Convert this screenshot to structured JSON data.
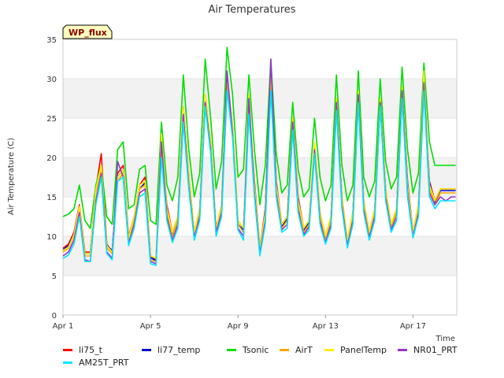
{
  "chart_data": {
    "type": "line",
    "title": "Air Temperatures",
    "xlabel": "Time",
    "ylabel": "Air Temperature (C)",
    "badge": "WP_flux",
    "xlim": [
      0,
      18
    ],
    "ylim": [
      0,
      35
    ],
    "x_ticks": [
      {
        "value": 0,
        "label": "Apr 1"
      },
      {
        "value": 4,
        "label": "Apr 5"
      },
      {
        "value": 8,
        "label": "Apr 9"
      },
      {
        "value": 12,
        "label": "Apr 13"
      },
      {
        "value": 16,
        "label": "Apr 17"
      }
    ],
    "y_ticks": [
      0,
      5,
      10,
      15,
      20,
      25,
      30,
      35
    ],
    "grid_bands": true,
    "legend_placement": "bottom",
    "x": [
      0.0,
      0.25,
      0.5,
      0.75,
      1.0,
      1.25,
      1.5,
      1.75,
      2.0,
      2.25,
      2.5,
      2.75,
      3.0,
      3.25,
      3.5,
      3.75,
      4.0,
      4.25,
      4.5,
      4.75,
      5.0,
      5.25,
      5.5,
      5.75,
      6.0,
      6.25,
      6.5,
      6.75,
      7.0,
      7.25,
      7.5,
      7.75,
      8.0,
      8.25,
      8.5,
      8.75,
      9.0,
      9.25,
      9.5,
      9.75,
      10.0,
      10.25,
      10.5,
      10.75,
      11.0,
      11.25,
      11.5,
      11.75,
      12.0,
      12.25,
      12.5,
      12.75,
      13.0,
      13.25,
      13.5,
      13.75,
      14.0,
      14.25,
      14.5,
      14.75,
      15.0,
      15.25,
      15.5,
      15.75,
      16.0,
      16.25,
      16.5,
      16.75,
      17.0,
      17.25,
      17.5,
      17.75,
      17.95
    ],
    "series": [
      {
        "name": "li75_t",
        "color": "#ff0000",
        "values": [
          8.5,
          9.0,
          10.5,
          14.0,
          8.0,
          8.0,
          16.0,
          20.5,
          9.0,
          8.0,
          18.0,
          19.0,
          10.0,
          12.5,
          16.5,
          17.5,
          7.5,
          7.0,
          21.5,
          14.0,
          10.5,
          12.5,
          26.5,
          18.0,
          10.5,
          13.5,
          28.0,
          22.0,
          11.0,
          14.0,
          30.0,
          24.0,
          12.0,
          11.0,
          27.0,
          17.0,
          8.5,
          13.5,
          31.5,
          17.0,
          11.5,
          12.5,
          25.0,
          15.0,
          11.0,
          12.0,
          21.5,
          13.0,
          10.0,
          12.5,
          27.5,
          15.0,
          9.5,
          13.0,
          28.5,
          14.5,
          10.5,
          13.5,
          27.5,
          16.0,
          11.5,
          13.5,
          29.0,
          17.0,
          10.5,
          14.0,
          29.5,
          17.0,
          14.5,
          16.0,
          16.0,
          16.0,
          16.0
        ]
      },
      {
        "name": "li77_temp",
        "color": "#0000cc",
        "values": [
          8.3,
          8.8,
          10.2,
          13.5,
          7.8,
          7.8,
          15.8,
          18.5,
          8.8,
          8.2,
          17.5,
          18.5,
          9.8,
          12.0,
          16.0,
          16.8,
          7.3,
          6.9,
          21.0,
          13.5,
          10.2,
          12.2,
          25.8,
          17.5,
          10.3,
          13.2,
          27.5,
          21.5,
          10.8,
          13.6,
          29.5,
          23.5,
          11.5,
          10.8,
          26.5,
          16.5,
          8.3,
          13.0,
          31.0,
          16.5,
          11.2,
          12.2,
          24.5,
          14.5,
          10.8,
          11.8,
          21.0,
          12.8,
          9.8,
          12.2,
          27.0,
          14.8,
          9.3,
          12.8,
          28.0,
          14.2,
          10.2,
          13.2,
          27.0,
          15.8,
          11.2,
          13.2,
          28.5,
          16.8,
          10.3,
          13.8,
          29.0,
          16.8,
          14.2,
          15.8,
          15.8,
          15.8,
          15.8
        ]
      },
      {
        "name": "Tsonic",
        "color": "#00dd00",
        "values": [
          12.5,
          12.8,
          13.5,
          16.5,
          12.0,
          11.0,
          16.5,
          19.0,
          12.5,
          11.5,
          21.0,
          22.0,
          13.5,
          14.0,
          18.5,
          19.0,
          12.0,
          11.5,
          24.5,
          16.5,
          14.5,
          17.5,
          30.5,
          21.0,
          15.0,
          18.0,
          32.5,
          25.0,
          16.0,
          19.5,
          34.0,
          28.0,
          17.5,
          18.5,
          30.5,
          21.0,
          14.0,
          19.0,
          32.5,
          20.5,
          15.5,
          16.5,
          27.0,
          18.5,
          15.0,
          16.0,
          25.0,
          17.5,
          14.5,
          16.5,
          30.5,
          19.0,
          14.5,
          16.5,
          31.0,
          17.5,
          15.0,
          17.0,
          30.0,
          19.5,
          16.0,
          17.5,
          31.5,
          21.0,
          15.5,
          18.0,
          32.0,
          22.0,
          19.0,
          19.0,
          19.0,
          19.0,
          19.0
        ]
      },
      {
        "name": "AirT",
        "color": "#ffa500",
        "values": [
          8.0,
          8.5,
          10.0,
          13.5,
          7.5,
          7.5,
          15.5,
          18.5,
          8.5,
          7.8,
          17.0,
          18.0,
          9.5,
          12.0,
          16.0,
          16.5,
          7.0,
          6.8,
          20.5,
          13.0,
          10.0,
          12.0,
          25.5,
          17.0,
          10.0,
          13.0,
          27.0,
          21.0,
          10.5,
          13.5,
          29.5,
          23.0,
          11.5,
          10.5,
          26.0,
          16.0,
          8.0,
          12.5,
          30.5,
          16.0,
          11.0,
          12.0,
          24.0,
          14.0,
          10.5,
          11.5,
          21.0,
          12.5,
          9.5,
          12.0,
          26.5,
          14.5,
          9.0,
          12.5,
          27.5,
          14.0,
          10.0,
          13.0,
          27.0,
          15.5,
          11.0,
          13.0,
          28.0,
          16.0,
          10.0,
          13.5,
          28.5,
          16.0,
          14.0,
          15.5,
          15.5,
          15.5,
          15.5
        ]
      },
      {
        "name": "PanelTemp",
        "color": "#ffee00",
        "values": [
          8.2,
          8.6,
          10.2,
          13.8,
          7.8,
          7.8,
          16.0,
          19.0,
          8.8,
          8.0,
          17.5,
          18.5,
          9.8,
          12.5,
          16.5,
          17.0,
          7.5,
          7.2,
          23.0,
          13.5,
          10.5,
          12.5,
          26.5,
          18.0,
          10.5,
          13.5,
          28.0,
          22.0,
          11.0,
          14.0,
          30.5,
          24.0,
          12.0,
          11.0,
          28.0,
          16.5,
          8.5,
          13.0,
          31.0,
          16.5,
          11.5,
          12.5,
          25.0,
          14.5,
          11.0,
          12.0,
          22.0,
          13.0,
          10.0,
          12.5,
          27.5,
          15.0,
          9.5,
          13.0,
          28.5,
          14.5,
          10.5,
          13.5,
          27.5,
          16.0,
          11.5,
          13.5,
          29.0,
          16.5,
          10.5,
          14.0,
          31.0,
          16.5,
          14.5,
          16.0,
          16.0,
          16.0,
          16.0
        ]
      },
      {
        "name": "NR01_PRT",
        "color": "#9933cc",
        "values": [
          7.5,
          8.0,
          9.5,
          13.0,
          7.0,
          6.8,
          14.5,
          18.0,
          8.0,
          7.2,
          19.5,
          17.5,
          9.0,
          11.5,
          15.5,
          16.0,
          6.8,
          6.5,
          22.0,
          12.5,
          9.5,
          11.5,
          25.5,
          16.5,
          9.8,
          12.5,
          27.0,
          21.0,
          10.5,
          13.0,
          31.0,
          23.0,
          11.0,
          10.0,
          27.5,
          15.5,
          7.8,
          12.0,
          32.5,
          15.5,
          10.8,
          11.5,
          24.5,
          13.5,
          10.2,
          11.2,
          21.0,
          12.0,
          9.2,
          11.5,
          27.0,
          14.0,
          8.8,
          12.0,
          28.0,
          13.5,
          9.8,
          12.5,
          27.0,
          15.0,
          10.8,
          12.5,
          28.5,
          15.5,
          10.0,
          13.0,
          29.5,
          15.5,
          14.0,
          15.0,
          14.5,
          15.0,
          15.0
        ]
      },
      {
        "name": "AM25T_PRT",
        "color": "#00e5ff",
        "values": [
          7.2,
          7.6,
          9.0,
          12.5,
          6.8,
          6.8,
          14.0,
          17.5,
          7.8,
          7.0,
          17.0,
          17.5,
          8.8,
          11.0,
          15.0,
          15.5,
          6.5,
          6.3,
          20.0,
          12.0,
          9.2,
          11.0,
          24.5,
          16.0,
          9.5,
          12.0,
          26.5,
          20.5,
          10.0,
          12.5,
          28.5,
          22.5,
          10.8,
          9.5,
          25.5,
          15.0,
          7.5,
          11.5,
          28.5,
          15.0,
          10.5,
          11.0,
          23.5,
          13.0,
          10.0,
          10.8,
          20.5,
          11.5,
          9.0,
          11.0,
          26.0,
          13.5,
          8.5,
          11.5,
          27.0,
          13.0,
          9.5,
          12.0,
          26.5,
          14.5,
          10.5,
          12.0,
          27.5,
          15.0,
          9.8,
          12.5,
          28.5,
          15.0,
          13.5,
          14.5,
          14.5,
          14.5,
          14.5
        ]
      }
    ]
  }
}
